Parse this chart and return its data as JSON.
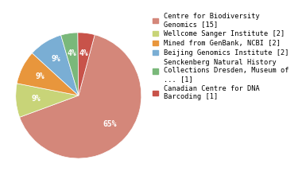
{
  "labels": [
    "Centre for Biodiversity\nGenomics [15]",
    "Wellcome Sanger Institute [2]",
    "Mined from GenBank, NCBI [2]",
    "Beijing Genomics Institute [2]",
    "Senckenberg Natural History\nCollections Dresden, Museum of\n... [1]",
    "Canadian Centre for DNA\nBarcoding [1]"
  ],
  "values": [
    15,
    2,
    2,
    2,
    1,
    1
  ],
  "colors": [
    "#d4877a",
    "#c8d478",
    "#e8963c",
    "#7aaed4",
    "#7ab87a",
    "#c8534a"
  ],
  "startangle": 75,
  "figsize": [
    3.8,
    2.4
  ],
  "dpi": 100,
  "legend_fontsize": 6.2,
  "background_color": "#ffffff"
}
